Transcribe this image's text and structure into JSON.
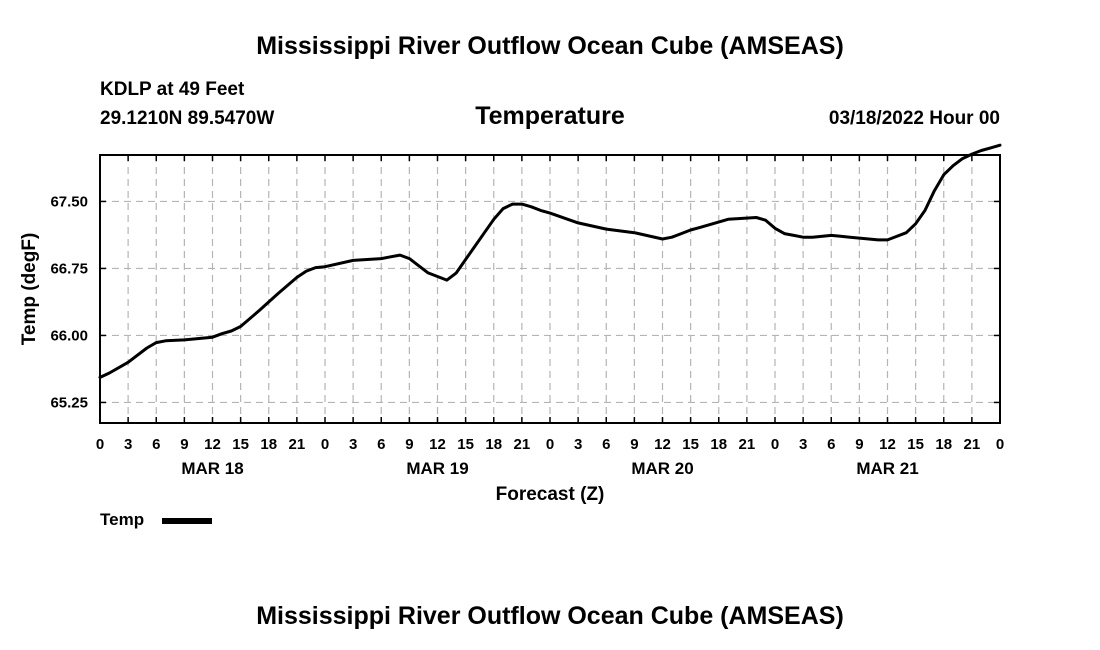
{
  "header": {
    "title": "Mississippi River Outflow Ocean Cube (AMSEAS)",
    "station": "KDLP at 49 Feet",
    "location": "29.1210N  89.5470W",
    "datetime": "03/18/2022 Hour 00",
    "footer_title": "Mississippi River Outflow Ocean Cube (AMSEAS)"
  },
  "chart_data": {
    "type": "line",
    "title": "Temperature",
    "xlabel": "Forecast (Z)",
    "ylabel": "Temp (degF)",
    "ylim": [
      65.02,
      68.02
    ],
    "xlim": [
      0,
      96
    ],
    "yticks": [
      65.25,
      66.0,
      66.75,
      67.5
    ],
    "ytick_labels": [
      "65.25",
      "66.00",
      "66.75",
      "67.50"
    ],
    "xtick_labels": [
      "0",
      "3",
      "6",
      "9",
      "12",
      "15",
      "18",
      "21",
      "0",
      "3",
      "6",
      "9",
      "12",
      "15",
      "18",
      "21",
      "0",
      "3",
      "6",
      "9",
      "12",
      "15",
      "18",
      "21",
      "0",
      "3",
      "6",
      "9",
      "12",
      "15",
      "18",
      "21",
      "0"
    ],
    "day_labels": [
      {
        "label": "MAR 18",
        "x": 12
      },
      {
        "label": "MAR 19",
        "x": 36
      },
      {
        "label": "MAR 20",
        "x": 60
      },
      {
        "label": "MAR 21",
        "x": 84
      }
    ],
    "grid": true,
    "legend": "bottom-left",
    "series": [
      {
        "name": "Temp",
        "color": "#000000",
        "x": [
          0,
          1,
          3,
          5,
          6,
          7,
          9,
          11,
          12,
          13,
          14,
          15,
          17,
          19,
          21,
          22,
          23,
          24,
          27,
          30,
          31,
          32,
          33,
          34,
          35,
          37,
          38,
          39,
          40,
          41,
          42,
          43,
          44,
          45,
          46,
          47,
          48,
          51,
          54,
          57,
          60,
          61,
          62,
          63,
          64,
          67,
          70,
          71,
          72,
          73,
          74,
          75,
          76,
          78,
          79,
          80,
          81,
          83,
          84,
          86,
          87,
          88,
          89,
          90,
          91,
          92,
          93,
          94,
          95,
          96
        ],
        "values": [
          65.53,
          65.58,
          65.7,
          65.86,
          65.92,
          65.94,
          65.95,
          65.97,
          65.98,
          66.02,
          66.05,
          66.1,
          66.28,
          66.47,
          66.65,
          66.72,
          66.76,
          66.77,
          66.84,
          66.86,
          66.88,
          66.9,
          66.86,
          66.78,
          66.7,
          66.62,
          66.7,
          66.85,
          67.0,
          67.15,
          67.3,
          67.42,
          67.47,
          67.47,
          67.44,
          67.4,
          67.37,
          67.26,
          67.19,
          67.15,
          67.08,
          67.1,
          67.14,
          67.18,
          67.21,
          67.3,
          67.32,
          67.29,
          67.2,
          67.14,
          67.12,
          67.1,
          67.1,
          67.12,
          67.11,
          67.1,
          67.09,
          67.07,
          67.07,
          67.15,
          67.25,
          67.4,
          67.62,
          67.8,
          67.9,
          67.98,
          68.03,
          68.07,
          68.1,
          68.13
        ]
      }
    ]
  }
}
